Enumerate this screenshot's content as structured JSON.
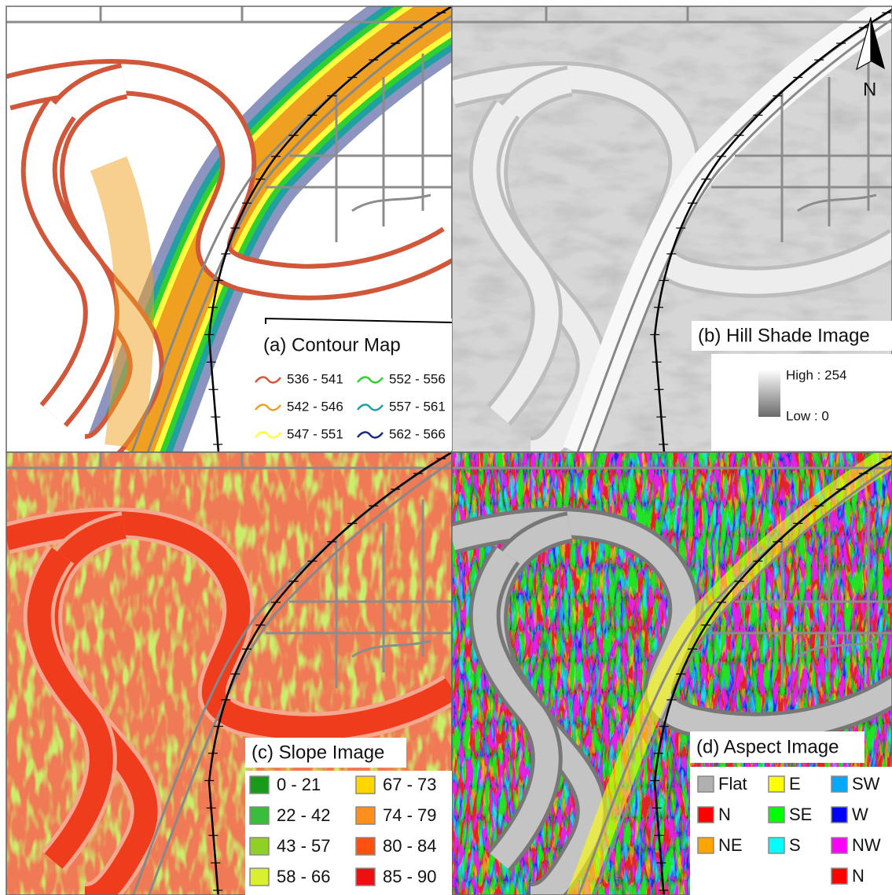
{
  "panels": [
    {
      "title": "(a) Contour Map",
      "legend": [
        {
          "label": "536 - 541",
          "color": "#d0573a"
        },
        {
          "label": "542 - 546",
          "color": "#f0a020"
        },
        {
          "label": "547 - 551",
          "color": "#ffff40"
        },
        {
          "label": "552 - 556",
          "color": "#30d030"
        },
        {
          "label": "557 - 561",
          "color": "#20a0a0"
        },
        {
          "label": "562 - 566",
          "color": "#1a2a80"
        }
      ]
    },
    {
      "title": "(b) Hill Shade Image",
      "north": "N",
      "legend": {
        "high": "High : 254",
        "low": "Low : 0"
      }
    },
    {
      "title": "(c) Slope Image",
      "legend": [
        {
          "label": "0 - 21",
          "color": "#1a9a1a"
        },
        {
          "label": "22 - 42",
          "color": "#3cbc3c"
        },
        {
          "label": "43 - 57",
          "color": "#8fd020"
        },
        {
          "label": "58 - 66",
          "color": "#d8f030"
        },
        {
          "label": "67 - 73",
          "color": "#ffd700"
        },
        {
          "label": "74 - 79",
          "color": "#ff9020"
        },
        {
          "label": "80 - 84",
          "color": "#ff5010"
        },
        {
          "label": "85 - 90",
          "color": "#ee1010"
        }
      ]
    },
    {
      "title": "(d) Aspect Image",
      "legend": [
        {
          "label": "Flat",
          "color": "#b0b0b0"
        },
        {
          "label": "N",
          "color": "#ff0000"
        },
        {
          "label": "NE",
          "color": "#ffa500"
        },
        {
          "label": "E",
          "color": "#ffff00"
        },
        {
          "label": "SE",
          "color": "#00ff00"
        },
        {
          "label": "S",
          "color": "#00ffff"
        },
        {
          "label": "SW",
          "color": "#00aaff"
        },
        {
          "label": "W",
          "color": "#0000ff"
        },
        {
          "label": "NW",
          "color": "#ff00ff"
        },
        {
          "label": "N",
          "color": "#ff0000"
        }
      ]
    }
  ]
}
